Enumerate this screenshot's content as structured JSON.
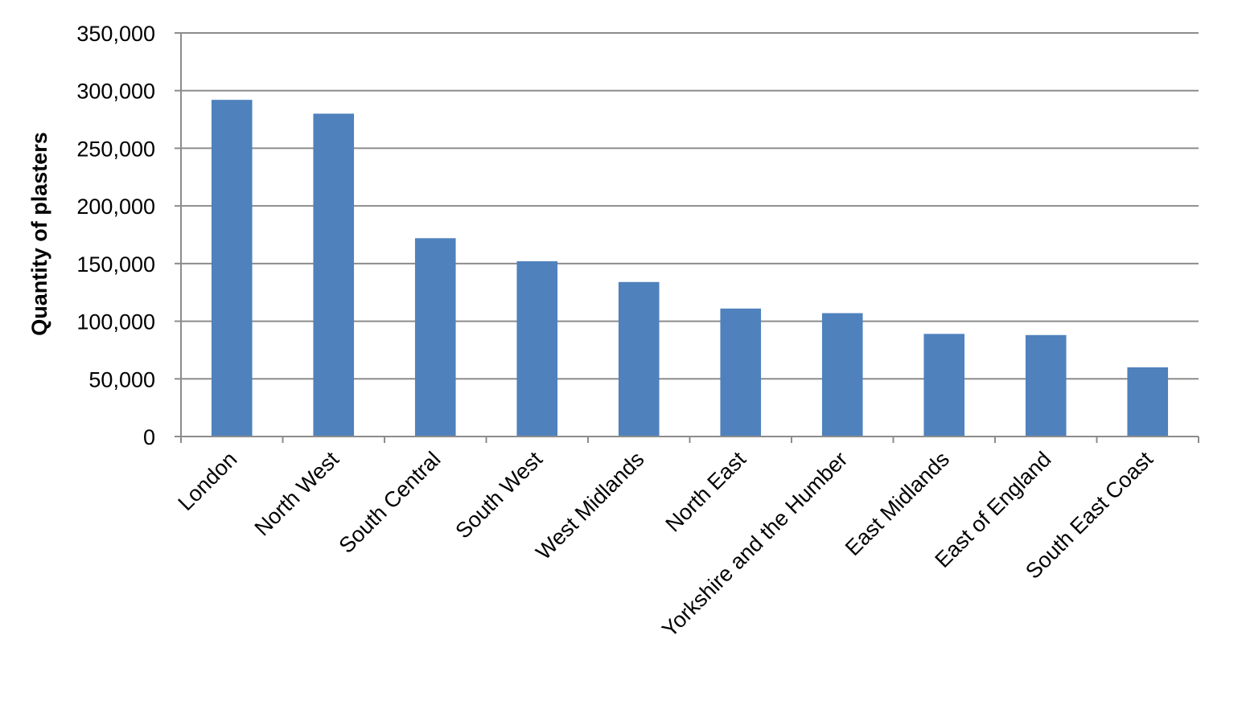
{
  "chart_data": {
    "type": "bar",
    "title": "",
    "xlabel": "",
    "ylabel": "Quantity of plasters",
    "categories": [
      "London",
      "North West",
      "South Central",
      "South West",
      "West Midlands",
      "North East",
      "Yorkshire and the Humber",
      "East Midlands",
      "East of England",
      "South East Coast"
    ],
    "values": [
      292000,
      280000,
      172000,
      152000,
      134000,
      111000,
      107000,
      89000,
      88000,
      60000
    ],
    "ylim": [
      0,
      350000
    ],
    "yticks": [
      0,
      50000,
      100000,
      150000,
      200000,
      250000,
      300000,
      350000
    ],
    "ytick_labels": [
      "0",
      "50,000",
      "100,000",
      "150,000",
      "200,000",
      "250,000",
      "300,000",
      "350,000"
    ],
    "grid": true,
    "legend": "none",
    "colors": {
      "bar": "#4f81bd",
      "grid": "#8c8c8c"
    }
  }
}
